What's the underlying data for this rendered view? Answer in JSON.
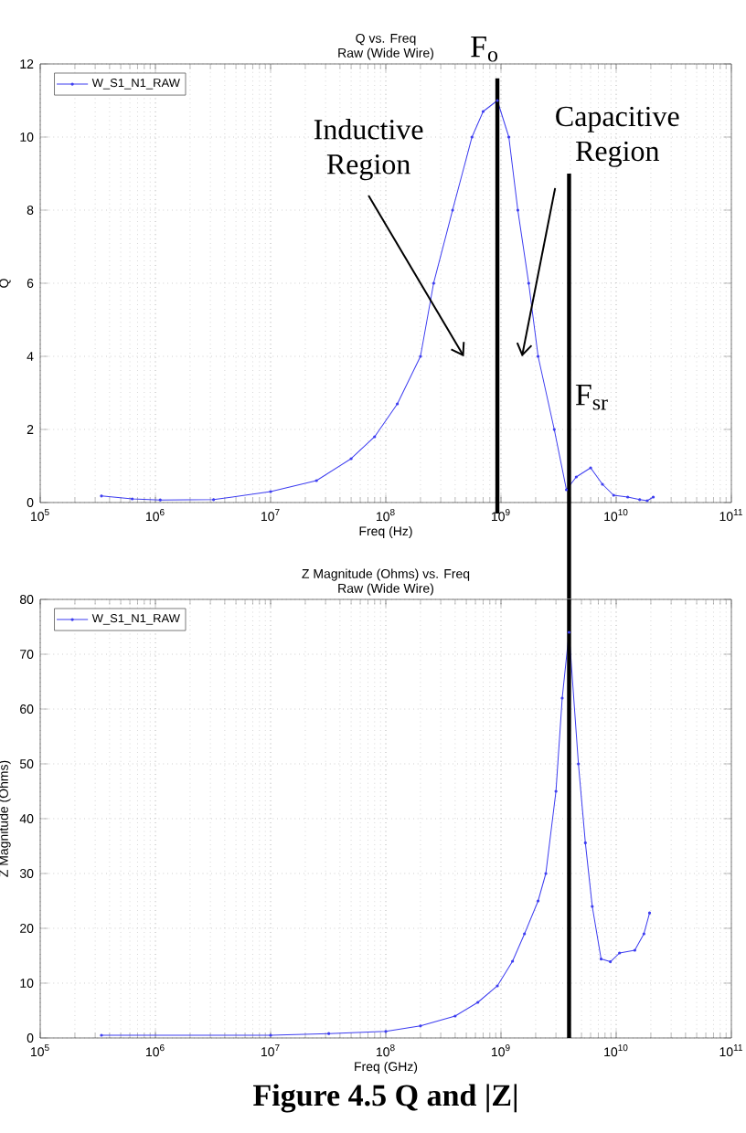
{
  "chart_data": [
    {
      "type": "line",
      "title": "Q vs. Freq",
      "subtitle": "Raw (Wide Wire)",
      "xlabel": "Freq (Hz)",
      "ylabel": "Q",
      "series": [
        {
          "name": "W_S1_N1_RAW",
          "color": "#3c3cf0",
          "x": [
            340000,
            630000,
            1100000,
            3200000,
            10000000,
            25000000,
            50000000,
            80000000,
            126000000,
            200000000,
            260000000,
            380000000,
            560000000,
            700000000,
            930000000,
            1170000000,
            1400000000,
            1740000000,
            2100000000,
            2900000000,
            3700000000,
            4500000000,
            6000000000,
            7600000000,
            9500000000,
            12600000000,
            16000000000,
            18600000000,
            21000000000
          ],
          "values": [
            0.18,
            0.1,
            0.07,
            0.08,
            0.3,
            0.6,
            1.2,
            1.8,
            2.7,
            4,
            6,
            8,
            10,
            10.7,
            11,
            10,
            8,
            6,
            4,
            2,
            0.35,
            0.7,
            0.95,
            0.5,
            0.2,
            0.15,
            0.08,
            0.05,
            0.15
          ]
        }
      ],
      "xlim": [
        100000,
        100000000000
      ],
      "ylim": [
        0,
        12
      ],
      "xticks": [
        {
          "value": 100000,
          "label": "10$^{5}$"
        },
        {
          "value": 1000000,
          "label": "10$^{6}$"
        },
        {
          "value": 10000000,
          "label": "10$^{7}$"
        },
        {
          "value": 100000000,
          "label": "10$^{8}$"
        },
        {
          "value": 1000000000,
          "label": "10$^{9}$"
        },
        {
          "value": 10000000000,
          "label": "10$^{10}$"
        },
        {
          "value": 100000000000,
          "label": "10$^{11}$"
        }
      ],
      "yticks": [
        0,
        2,
        4,
        6,
        8,
        10,
        12
      ],
      "log": "x",
      "grid": true,
      "legend": "top left",
      "marker": "circle",
      "line_style": "solid",
      "ref_lines": [
        {
          "axis": "x",
          "value": 930000000,
          "label": "F$_{o}$",
          "color": "#000000"
        },
        {
          "axis": "x",
          "value": 3900000000,
          "label": "F$_{sr}$",
          "color": "#000000"
        }
      ],
      "annotations": [
        "Inductive Region",
        "Capacitive Region"
      ]
    },
    {
      "type": "line",
      "title": "Z Magnitude (Ohms) vs. Freq",
      "subtitle": "Raw (Wide Wire)",
      "xlabel": "Freq (GHz)",
      "ylabel": "Z Magnitude (Ohms)",
      "series": [
        {
          "name": "W_S1_N1_RAW",
          "color": "#3c3cf0",
          "x": [
            340000,
            10000000,
            32000000,
            100000000,
            200000000,
            400000000,
            630000000,
            930000000,
            1260000000,
            1600000000,
            2100000000,
            2450000000,
            3000000000,
            3400000000,
            3900000000,
            4700000000,
            5400000000,
            6200000000,
            7400000000,
            8900000000,
            10700000000,
            14500000000,
            17400000000,
            19500000000
          ],
          "values": [
            0.5,
            0.5,
            0.8,
            1.2,
            2.2,
            4,
            6.5,
            9.5,
            14,
            19,
            25,
            30,
            45,
            62,
            74,
            50,
            35.6,
            24,
            14.4,
            13.9,
            15.5,
            16,
            19,
            22.8
          ]
        }
      ],
      "xlim": [
        100000,
        100000000000
      ],
      "ylim": [
        0,
        80
      ],
      "xticks": [
        {
          "value": 100000,
          "label": "10$^{5}$"
        },
        {
          "value": 1000000,
          "label": "10$^{6}$"
        },
        {
          "value": 10000000,
          "label": "10$^{7}$"
        },
        {
          "value": 100000000,
          "label": "10$^{8}$"
        },
        {
          "value": 1000000000,
          "label": "10$^{9}$"
        },
        {
          "value": 10000000000,
          "label": "10$^{10}$"
        },
        {
          "value": 100000000000,
          "label": "10$^{11}$"
        }
      ],
      "yticks": [
        0,
        10,
        20,
        30,
        40,
        50,
        60,
        70,
        80
      ],
      "log": "x",
      "grid": true,
      "legend": "top left",
      "marker": "circle",
      "line_style": "solid",
      "ref_lines": [
        {
          "axis": "x",
          "value": 3900000000,
          "color": "#000000"
        }
      ],
      "annotations": [
        "Figure 4.5 Q and |Z|"
      ]
    }
  ]
}
